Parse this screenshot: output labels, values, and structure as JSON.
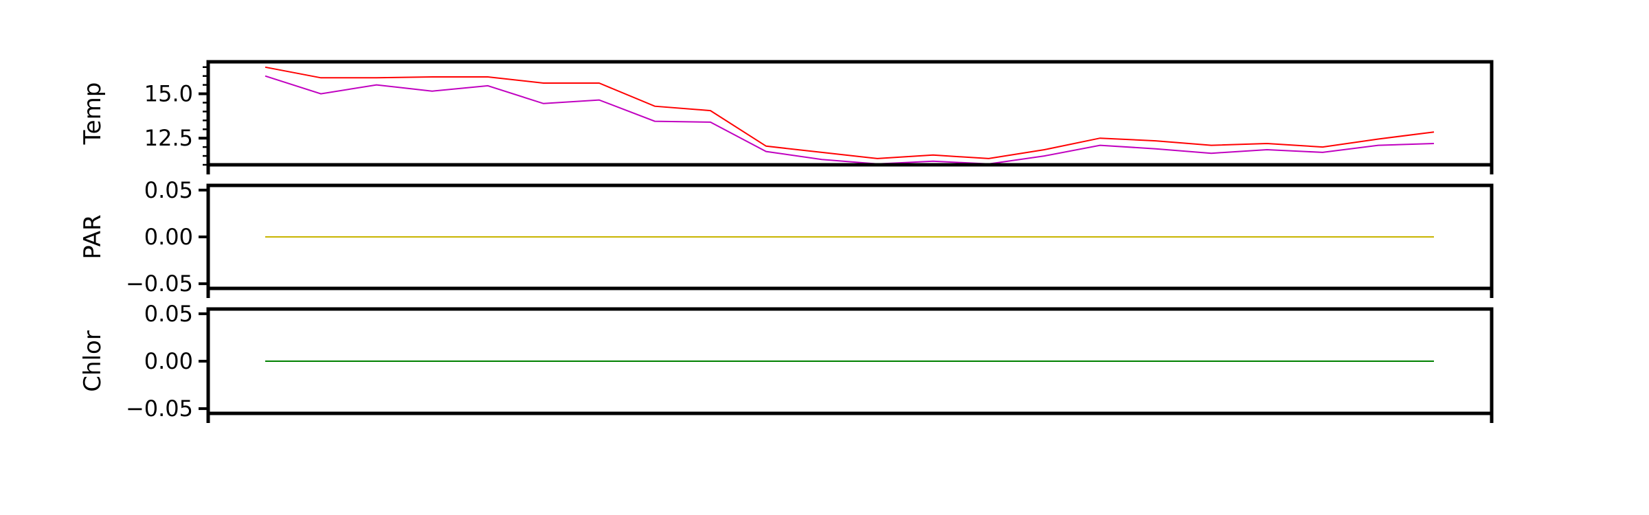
{
  "chart_data": [
    {
      "type": "line",
      "ylabel": "Temp",
      "xlim": [
        0,
        21
      ],
      "ylim": [
        11.0,
        16.8
      ],
      "yticks": [
        12.5,
        15.0
      ],
      "ytick_labels": [
        "12.5",
        "15.0"
      ],
      "minor_ytick_step": 0.5,
      "grid": false,
      "series": [
        {
          "color": "#ff0000",
          "x": [
            0,
            1,
            2,
            3,
            4,
            5,
            6,
            7,
            8,
            9,
            10,
            11,
            12,
            13,
            14,
            15,
            16,
            17,
            18,
            19,
            20,
            21
          ],
          "values": [
            16.5,
            15.9,
            15.9,
            15.95,
            15.95,
            15.6,
            15.6,
            14.3,
            14.05,
            12.05,
            11.7,
            11.35,
            11.55,
            11.35,
            11.85,
            12.5,
            12.35,
            12.1,
            12.2,
            12.0,
            12.45,
            12.85
          ]
        },
        {
          "color": "#c000c0",
          "x": [
            0,
            1,
            2,
            3,
            4,
            5,
            6,
            7,
            8,
            9,
            10,
            11,
            12,
            13,
            14,
            15,
            16,
            17,
            18,
            19,
            20,
            21
          ],
          "values": [
            16.0,
            15.0,
            15.5,
            15.15,
            15.45,
            14.45,
            14.65,
            13.45,
            13.4,
            11.75,
            11.3,
            11.05,
            11.2,
            11.05,
            11.5,
            12.1,
            11.9,
            11.65,
            11.85,
            11.7,
            12.1,
            12.2
          ]
        }
      ]
    },
    {
      "type": "line",
      "ylabel": "PAR",
      "xlim": [
        0,
        21
      ],
      "ylim": [
        -0.055,
        0.055
      ],
      "yticks": [
        -0.05,
        0.0,
        0.05
      ],
      "ytick_labels": [
        "−0.05",
        "0.00",
        "0.05"
      ],
      "grid": false,
      "series": [
        {
          "color": "#c8b400",
          "x": [
            0,
            1,
            2,
            3,
            4,
            5,
            6,
            7,
            8,
            9,
            10,
            11,
            12,
            13,
            14,
            15,
            16,
            17,
            18,
            19,
            20,
            21
          ],
          "values": [
            0,
            0,
            0,
            0,
            0,
            0,
            0,
            0,
            0,
            0,
            0,
            0,
            0,
            0,
            0,
            0,
            0,
            0,
            0,
            0,
            0,
            0
          ]
        }
      ]
    },
    {
      "type": "line",
      "ylabel": "Chlor",
      "xlim": [
        0,
        21
      ],
      "ylim": [
        -0.055,
        0.055
      ],
      "yticks": [
        -0.05,
        0.0,
        0.05
      ],
      "ytick_labels": [
        "−0.05",
        "0.00",
        "0.05"
      ],
      "grid": false,
      "series": [
        {
          "color": "#008000",
          "x": [
            0,
            1,
            2,
            3,
            4,
            5,
            6,
            7,
            8,
            9,
            10,
            11,
            12,
            13,
            14,
            15,
            16,
            17,
            18,
            19,
            20,
            21
          ],
          "values": [
            0,
            0,
            0,
            0,
            0,
            0,
            0,
            0,
            0,
            0,
            0,
            0,
            0,
            0,
            0,
            0,
            0,
            0,
            0,
            0,
            0,
            0
          ]
        }
      ]
    }
  ]
}
